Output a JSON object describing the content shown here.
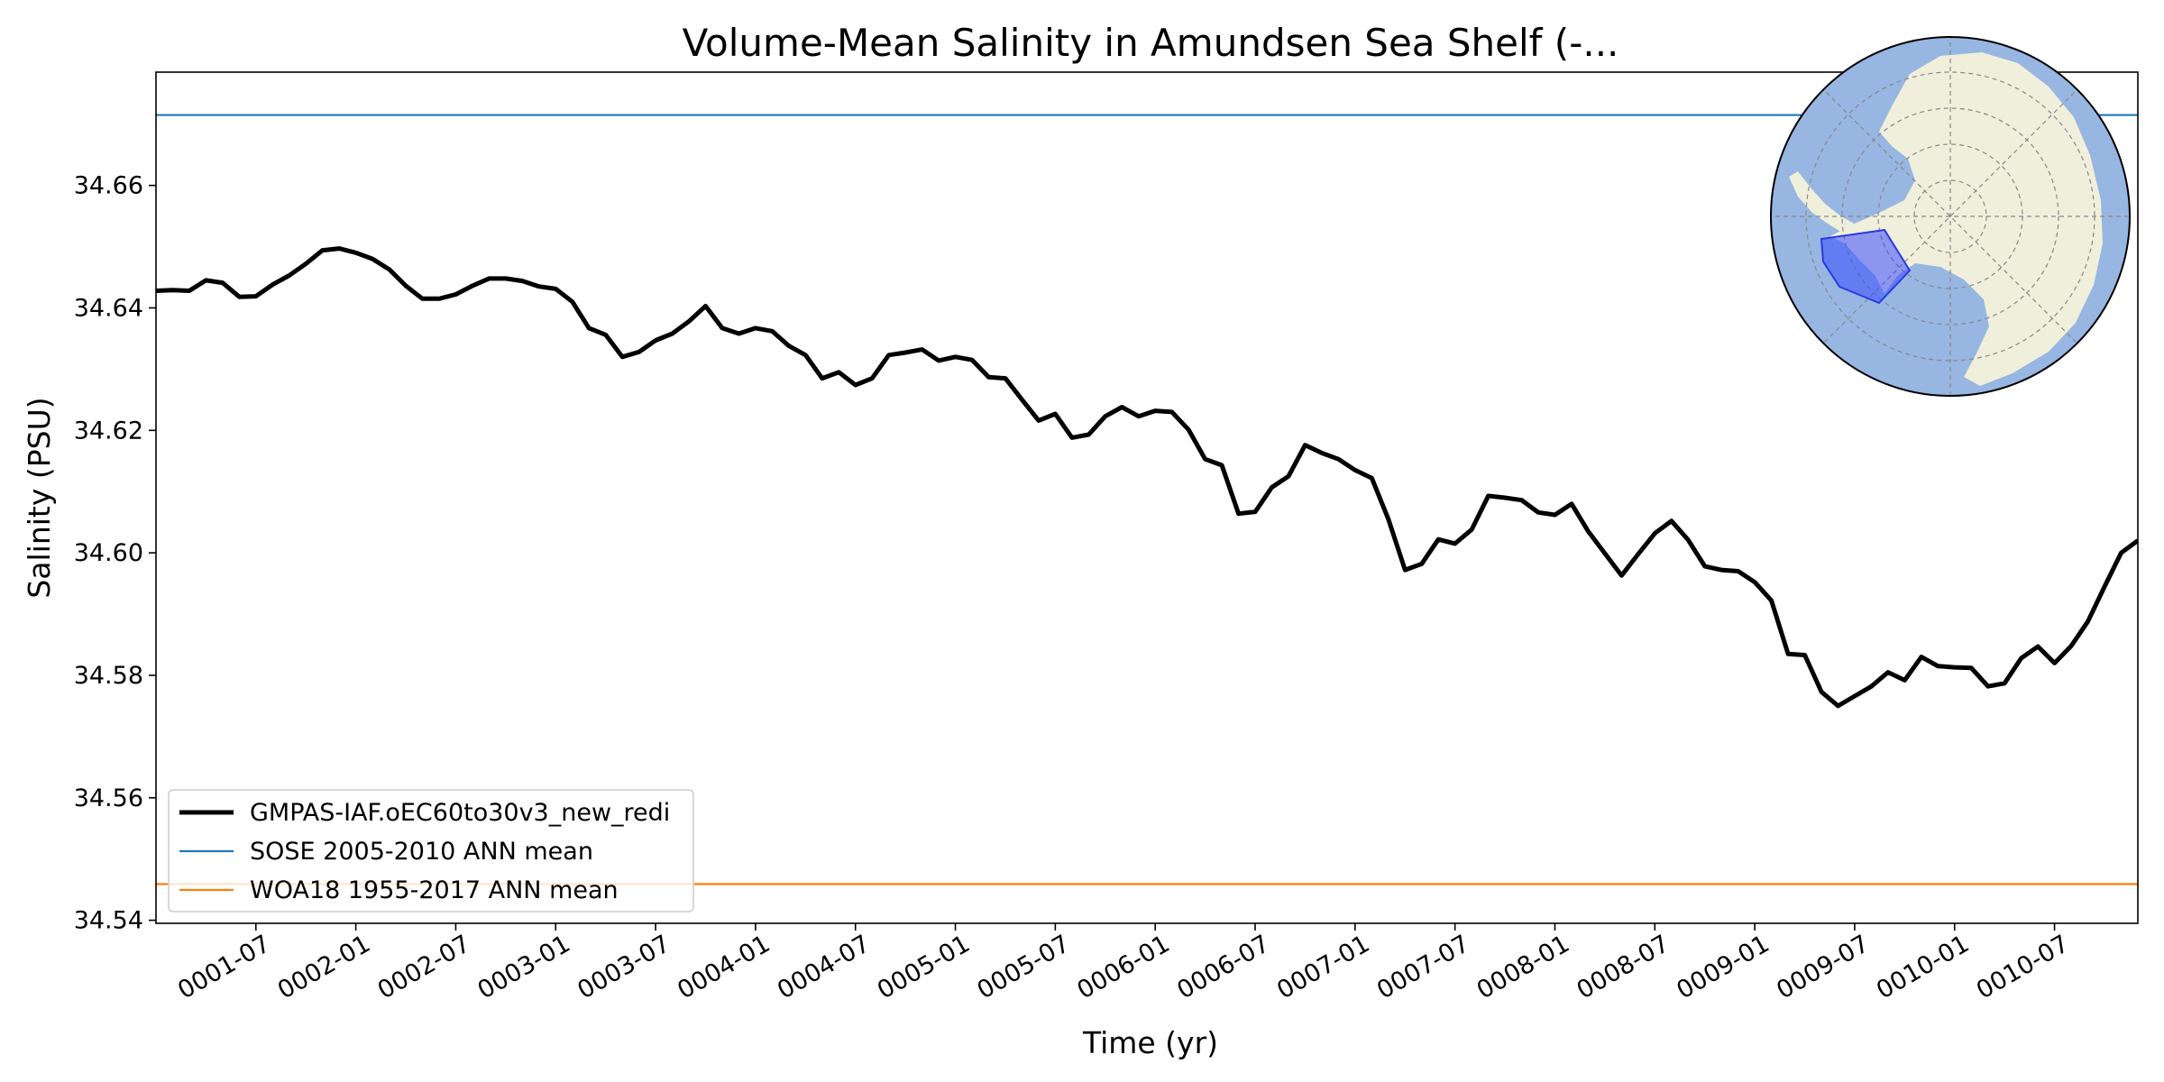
{
  "chart_data": {
    "type": "line",
    "title": "Volume-Mean Salinity in Amundsen Sea Shelf (-...",
    "xlabel": "Time (yr)",
    "ylabel": "Salinity (PSU)",
    "xlim": [
      1.0,
      10.917
    ],
    "ylim": [
      34.5395,
      34.6785
    ],
    "yticks": [
      34.54,
      34.56,
      34.58,
      34.6,
      34.62,
      34.64,
      34.66
    ],
    "ytick_labels": [
      "34.54",
      "34.56",
      "34.58",
      "34.60",
      "34.62",
      "34.64",
      "34.66"
    ],
    "xticks": [
      1.5,
      2.0,
      2.5,
      3.0,
      3.5,
      4.0,
      4.5,
      5.0,
      5.5,
      6.0,
      6.5,
      7.0,
      7.5,
      8.0,
      8.5,
      9.0,
      9.5,
      10.0,
      10.5
    ],
    "xtick_labels": [
      "0001-07",
      "0002-01",
      "0002-07",
      "0003-01",
      "0003-07",
      "0004-01",
      "0004-07",
      "0005-01",
      "0005-07",
      "0006-01",
      "0006-07",
      "0007-01",
      "0007-07",
      "0008-01",
      "0008-07",
      "0009-01",
      "0009-07",
      "0010-01",
      "0010-07"
    ],
    "x_unit": "years since model start (monthly samples)",
    "series": [
      {
        "name": "GMPAS-IAF.oEC60to30v3_new_redi",
        "color": "#000000",
        "values": [
          34.6428,
          34.6429,
          34.6428,
          34.6445,
          34.6441,
          34.6418,
          34.6419,
          34.6438,
          34.6453,
          34.6472,
          34.6494,
          34.6497,
          34.649,
          34.648,
          34.6463,
          34.6436,
          34.6415,
          34.6415,
          34.6422,
          34.6436,
          34.6448,
          34.6448,
          34.6444,
          34.6435,
          34.6431,
          34.641,
          34.6367,
          34.6356,
          34.632,
          34.6328,
          34.6347,
          34.6358,
          34.6378,
          34.6403,
          34.6367,
          34.6358,
          34.6367,
          34.6362,
          34.6338,
          34.6323,
          34.6285,
          34.6295,
          34.6274,
          34.6285,
          34.6323,
          34.6327,
          34.6332,
          34.6314,
          34.632,
          34.6315,
          34.6287,
          34.6285,
          34.625,
          34.6216,
          34.6227,
          34.6188,
          34.6193,
          34.6223,
          34.6238,
          34.6223,
          34.6232,
          34.623,
          34.6201,
          34.6153,
          34.6143,
          34.6064,
          34.6067,
          34.6107,
          34.6125,
          34.6176,
          34.6163,
          34.6153,
          34.6135,
          34.6122,
          34.6055,
          34.5972,
          34.5982,
          34.6022,
          34.6015,
          34.6038,
          34.6093,
          34.609,
          34.6086,
          34.6066,
          34.6062,
          34.608,
          34.6035,
          34.5999,
          34.5963,
          34.5998,
          34.6032,
          34.6052,
          34.6021,
          34.5978,
          34.5972,
          34.597,
          34.5952,
          34.5922,
          34.5835,
          34.5833,
          34.5773,
          34.575,
          34.5766,
          34.5782,
          34.5805,
          34.5792,
          34.583,
          34.5815,
          34.5813,
          34.5812,
          34.5782,
          34.5787,
          34.5828,
          34.5847,
          34.582,
          34.5848,
          34.5888,
          34.5945,
          34.6,
          34.602
        ]
      },
      {
        "name": "SOSE 2005-2010 ANN mean",
        "color": "#1f77b4",
        "constant": 34.6715
      },
      {
        "name": "WOA18 1955-2017 ANN mean",
        "color": "#ff7f0e",
        "constant": 34.5459
      }
    ],
    "legend_position": "lower-left",
    "inset_map": "south-polar stereographic map of Antarctica with the Amundsen Sea Shelf region highlighted in blue"
  }
}
